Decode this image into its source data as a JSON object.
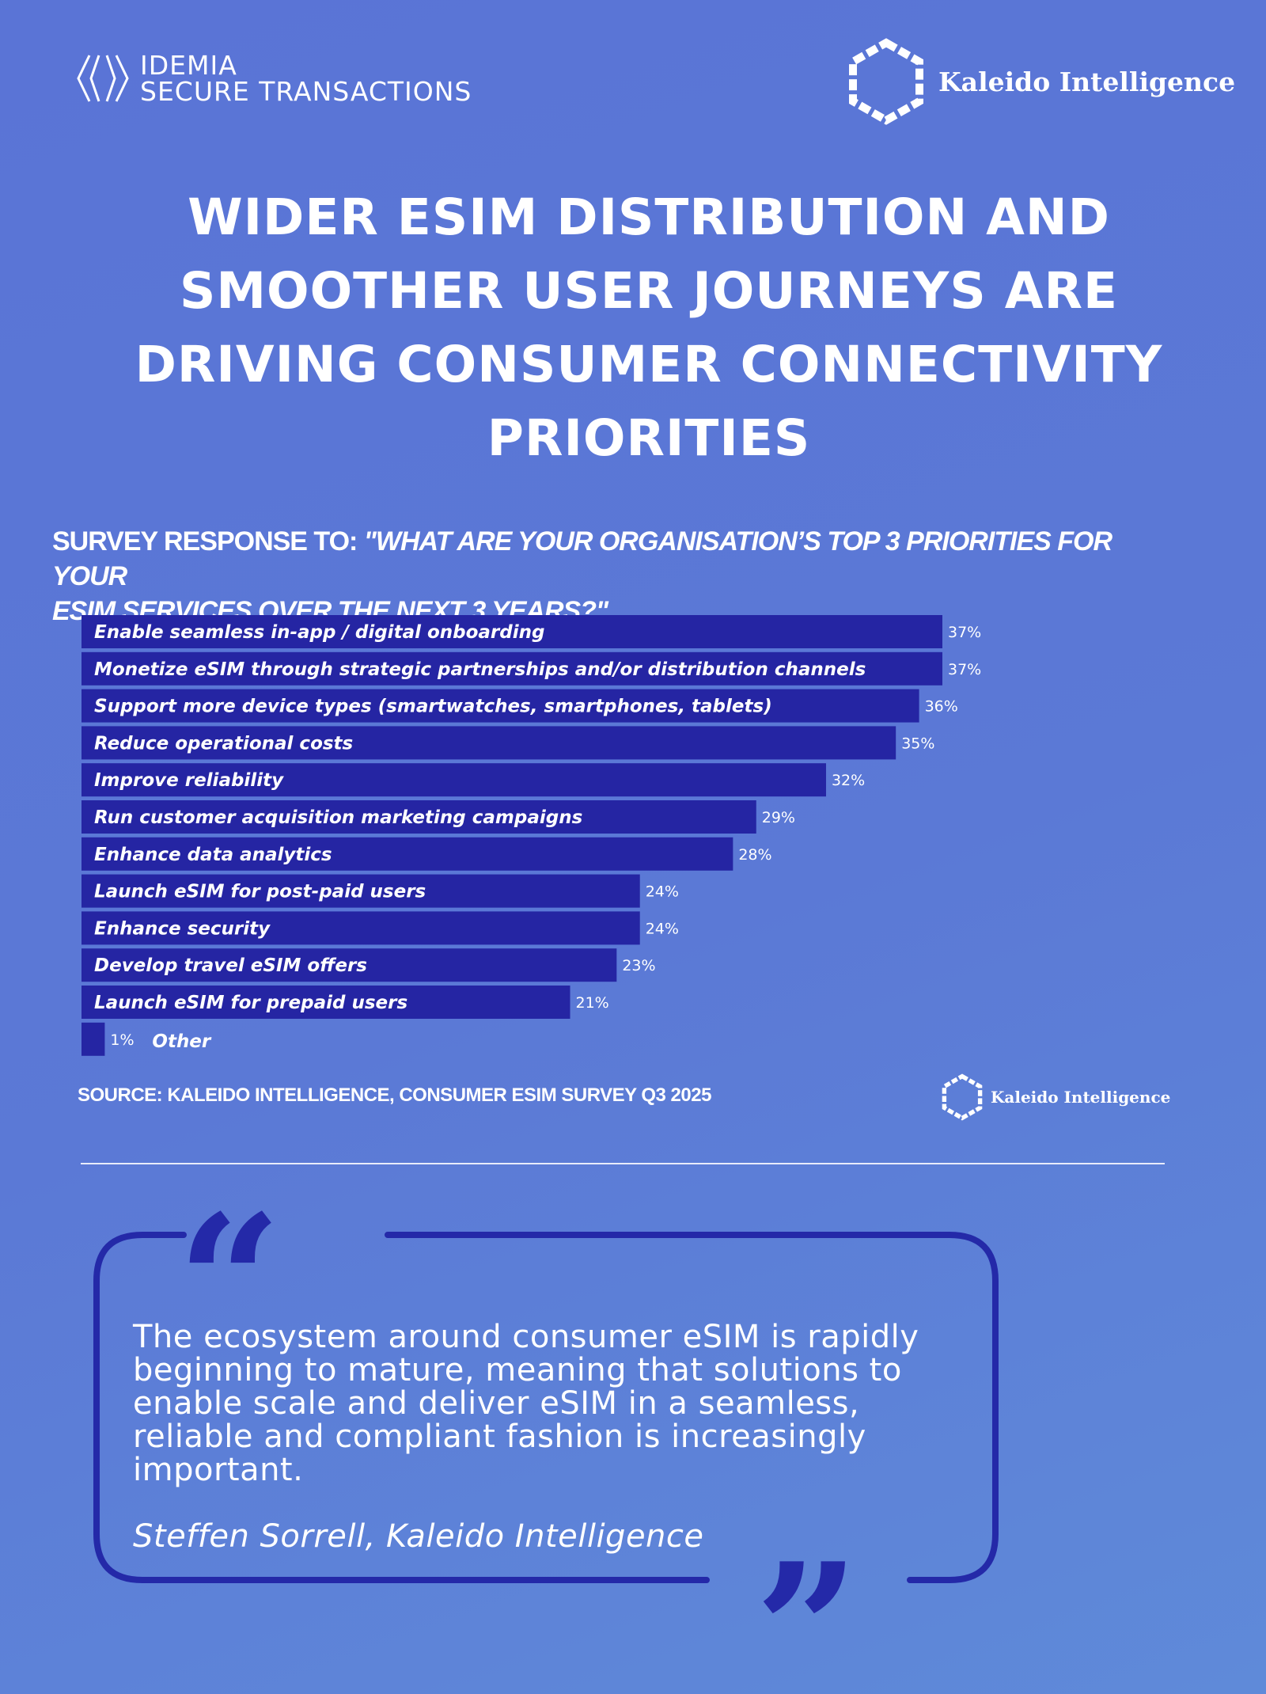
{
  "logos": {
    "idemia_line1": "IDEMIA",
    "idemia_line2": "SECURE TRANSACTIONS",
    "kaleido_name": "Kaleido Intelligence"
  },
  "title_lines": [
    "WIDER ESIM DISTRIBUTION AND",
    "SMOOTHER USER JOURNEYS ARE",
    "DRIVING CONSUMER CONNECTIVITY",
    "PRIORITIES"
  ],
  "question": {
    "prefix": "SURVEY RESPONSE TO: ",
    "italic_line1": "\"WHAT ARE YOUR ORGANISATION’S TOP 3 PRIORITIES FOR YOUR",
    "italic_line2": "ESIM SERVICES OVER THE NEXT 3 YEARS?\""
  },
  "chart_data": {
    "type": "bar",
    "orientation": "horizontal",
    "unit": "%",
    "xlim": [
      0,
      37
    ],
    "categories": [
      "Enable seamless in-app / digital onboarding",
      "Monetize eSIM through strategic partnerships and/or distribution channels",
      "Support more device types (smartwatches, smartphones, tablets)",
      "Reduce operational costs",
      "Improve reliability",
      "Run customer acquisition marketing campaigns",
      "Enhance data analytics",
      "Launch eSIM for post-paid users",
      "Enhance security",
      "Develop travel eSIM offers",
      "Launch eSIM for prepaid users",
      "Other"
    ],
    "values": [
      37,
      37,
      36,
      35,
      32,
      29,
      28,
      24,
      24,
      23,
      21,
      1
    ],
    "value_labels": [
      "37%",
      "37%",
      "36%",
      "35%",
      "32%",
      "29%",
      "28%",
      "24%",
      "24%",
      "23%",
      "21%",
      "1%"
    ],
    "bar_color": "#2525a3",
    "grid": false,
    "legend": false
  },
  "source": "SOURCE: KALEIDO INTELLIGENCE, CONSUMER ESIM SURVEY Q3 2025",
  "quote": {
    "lines": [
      "The ecosystem around consumer eSIM is rapidly",
      "beginning to mature, meaning that solutions to",
      "enable scale and deliver eSIM in a seamless,",
      "reliable and compliant fashion is increasingly",
      "important."
    ],
    "author": "Steffen Sorrell, Kaleido Intelligence",
    "frame_color": "#2429a8",
    "open_mark": "“",
    "close_mark": "”"
  },
  "colors": {
    "background": "#5a74d6",
    "bar": "#2525a3",
    "quote_frame": "#2429a8"
  }
}
